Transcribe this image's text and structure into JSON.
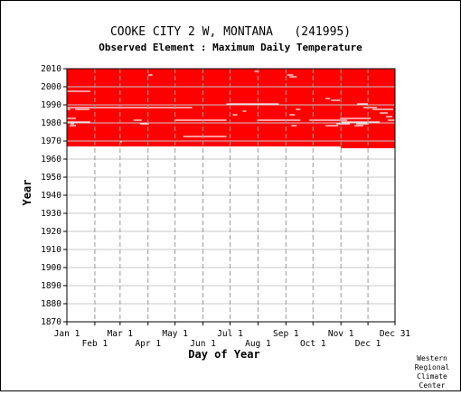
{
  "header": {
    "title": "COOKE CITY 2 W, MONTANA   (241995)",
    "subtitle": "Observed Element : Maximum Daily Temperature"
  },
  "credit": [
    "Western",
    "Regional",
    "Climate",
    "Center"
  ],
  "chart_data": {
    "type": "heatmap",
    "title": "COOKE CITY 2 W, MONTANA   (241995)",
    "subtitle": "Observed Element : Maximum Daily Temperature",
    "xlabel": "Day of Year",
    "ylabel": "Year",
    "x_ticks_top_row": [
      "Jan 1",
      "Mar 1",
      "May 1",
      "Jul 1",
      "Sep 1",
      "Nov 1",
      "Dec 31"
    ],
    "x_ticks_bottom_row": [
      "Feb 1",
      "Apr 1",
      "Jun 1",
      "Aug 1",
      "Oct 1",
      "Dec 1"
    ],
    "x_tick_days": {
      "Jan 1": 1,
      "Feb 1": 32,
      "Mar 1": 60,
      "Apr 1": 91,
      "May 1": 121,
      "Jun 1": 152,
      "Jul 1": 182,
      "Aug 1": 213,
      "Sep 1": 244,
      "Oct 1": 274,
      "Nov 1": 305,
      "Dec 1": 335,
      "Dec 31": 365
    },
    "xlim": [
      1,
      365
    ],
    "ylim": [
      1870,
      2010
    ],
    "y_ticks": [
      1870,
      1880,
      1890,
      1900,
      1910,
      1920,
      1930,
      1940,
      1950,
      1960,
      1970,
      1980,
      1990,
      2000,
      2010
    ],
    "grid": true,
    "fill_color": "#ff0000",
    "gap_color": "#ffffff",
    "data_coverage": [
      {
        "start_year": 1967,
        "end_year": 2010,
        "start_day": 1,
        "end_day": 305
      },
      {
        "start_year": 1966,
        "end_year": 2010,
        "start_day": 305,
        "end_day": 365
      }
    ],
    "missing_records": [
      {
        "year": 1997,
        "start_day": 1,
        "end_day": 27
      },
      {
        "year": 1988,
        "start_day": 1,
        "end_day": 140
      },
      {
        "year": 1987,
        "start_day": 1,
        "end_day": 5
      },
      {
        "year": 1987,
        "start_day": 10,
        "end_day": 26
      },
      {
        "year": 1982,
        "start_day": 1,
        "end_day": 11
      },
      {
        "year": 1980,
        "start_day": 1,
        "end_day": 27
      },
      {
        "year": 1979,
        "start_day": 5,
        "end_day": 9
      },
      {
        "year": 1978,
        "start_day": 4,
        "end_day": 11
      },
      {
        "year": 1969,
        "start_day": 60,
        "end_day": 62
      },
      {
        "year": 2006,
        "start_day": 91,
        "end_day": 96
      },
      {
        "year": 1981,
        "start_day": 75,
        "end_day": 84
      },
      {
        "year": 1979,
        "start_day": 82,
        "end_day": 92
      },
      {
        "year": 1972,
        "start_day": 130,
        "end_day": 178
      },
      {
        "year": 1981,
        "start_day": 120,
        "end_day": 178
      },
      {
        "year": 1990,
        "start_day": 178,
        "end_day": 236
      },
      {
        "year": 1984,
        "start_day": 185,
        "end_day": 190
      },
      {
        "year": 1986,
        "start_day": 196,
        "end_day": 200
      },
      {
        "year": 2008,
        "start_day": 209,
        "end_day": 214
      },
      {
        "year": 1981,
        "start_day": 212,
        "end_day": 260
      },
      {
        "year": 1981,
        "start_day": 270,
        "end_day": 312
      },
      {
        "year": 2006,
        "start_day": 245,
        "end_day": 252
      },
      {
        "year": 2005,
        "start_day": 248,
        "end_day": 256
      },
      {
        "year": 1984,
        "start_day": 248,
        "end_day": 254
      },
      {
        "year": 1987,
        "start_day": 255,
        "end_day": 260
      },
      {
        "year": 1978,
        "start_day": 250,
        "end_day": 256
      },
      {
        "year": 1993,
        "start_day": 288,
        "end_day": 293
      },
      {
        "year": 1992,
        "start_day": 294,
        "end_day": 304
      },
      {
        "year": 1978,
        "start_day": 288,
        "end_day": 302
      },
      {
        "year": 1979,
        "start_day": 300,
        "end_day": 315
      },
      {
        "year": 1982,
        "start_day": 304,
        "end_day": 338
      },
      {
        "year": 1980,
        "start_day": 305,
        "end_day": 348
      },
      {
        "year": 1979,
        "start_day": 322,
        "end_day": 336
      },
      {
        "year": 1978,
        "start_day": 320,
        "end_day": 330
      },
      {
        "year": 1990,
        "start_day": 323,
        "end_day": 335
      },
      {
        "year": 1988,
        "start_day": 330,
        "end_day": 345
      },
      {
        "year": 1985,
        "start_day": 348,
        "end_day": 357
      },
      {
        "year": 1987,
        "start_day": 340,
        "end_day": 363
      },
      {
        "year": 1983,
        "start_day": 355,
        "end_day": 362
      },
      {
        "year": 1981,
        "start_day": 357,
        "end_day": 365
      }
    ]
  }
}
